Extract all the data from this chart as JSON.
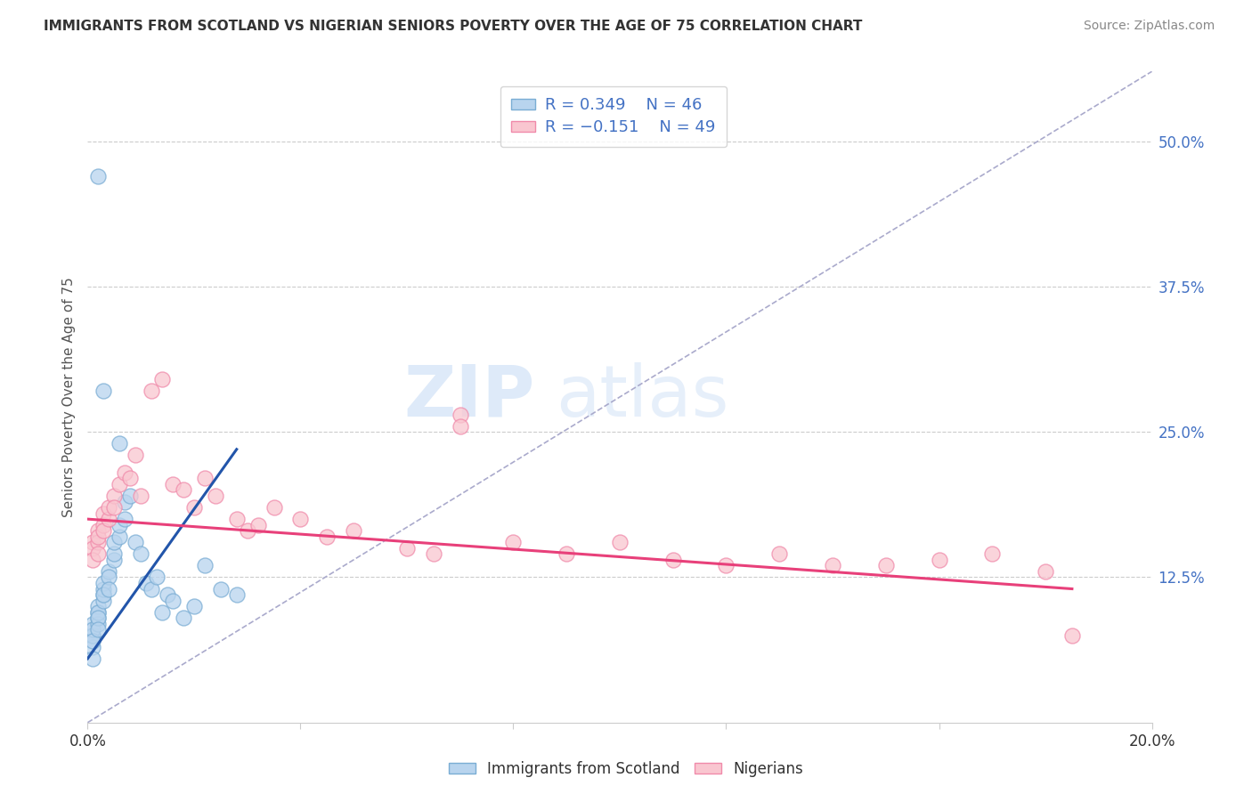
{
  "title": "IMMIGRANTS FROM SCOTLAND VS NIGERIAN SENIORS POVERTY OVER THE AGE OF 75 CORRELATION CHART",
  "source": "Source: ZipAtlas.com",
  "ylabel": "Seniors Poverty Over the Age of 75",
  "xlim": [
    0.0,
    0.2
  ],
  "ylim": [
    0.0,
    0.56
  ],
  "yticks_right": [
    0.125,
    0.25,
    0.375,
    0.5
  ],
  "yticklabels_right": [
    "12.5%",
    "25.0%",
    "37.5%",
    "50.0%"
  ],
  "grid_color": "#cccccc",
  "background_color": "#ffffff",
  "blue_color": "#b8d4ee",
  "blue_edge": "#7aadd4",
  "pink_color": "#f9c6d0",
  "pink_edge": "#f08aaa",
  "blue_line_color": "#2255aa",
  "pink_line_color": "#e8407a",
  "diag_line_color": "#aaaacc",
  "legend_label1": "Immigrants from Scotland",
  "legend_label2": "Nigerians",
  "watermark_zip": "ZIP",
  "watermark_atlas": "atlas",
  "blue_x": [
    0.001,
    0.001,
    0.001,
    0.001,
    0.001,
    0.001,
    0.001,
    0.002,
    0.002,
    0.002,
    0.002,
    0.002,
    0.002,
    0.002,
    0.003,
    0.003,
    0.003,
    0.003,
    0.003,
    0.004,
    0.004,
    0.004,
    0.005,
    0.005,
    0.005,
    0.006,
    0.006,
    0.007,
    0.007,
    0.008,
    0.009,
    0.01,
    0.011,
    0.012,
    0.013,
    0.014,
    0.015,
    0.016,
    0.018,
    0.02,
    0.022,
    0.025,
    0.028,
    0.002,
    0.003,
    0.006
  ],
  "blue_y": [
    0.085,
    0.075,
    0.065,
    0.075,
    0.08,
    0.07,
    0.055,
    0.09,
    0.095,
    0.085,
    0.1,
    0.095,
    0.09,
    0.08,
    0.11,
    0.105,
    0.115,
    0.12,
    0.11,
    0.13,
    0.125,
    0.115,
    0.14,
    0.145,
    0.155,
    0.16,
    0.17,
    0.19,
    0.175,
    0.195,
    0.155,
    0.145,
    0.12,
    0.115,
    0.125,
    0.095,
    0.11,
    0.105,
    0.09,
    0.1,
    0.135,
    0.115,
    0.11,
    0.47,
    0.285,
    0.24
  ],
  "pink_x": [
    0.001,
    0.001,
    0.001,
    0.002,
    0.002,
    0.002,
    0.002,
    0.003,
    0.003,
    0.003,
    0.004,
    0.004,
    0.005,
    0.005,
    0.006,
    0.007,
    0.008,
    0.009,
    0.01,
    0.012,
    0.014,
    0.016,
    0.018,
    0.02,
    0.022,
    0.024,
    0.028,
    0.03,
    0.032,
    0.035,
    0.04,
    0.045,
    0.05,
    0.06,
    0.065,
    0.07,
    0.08,
    0.09,
    0.1,
    0.11,
    0.12,
    0.13,
    0.14,
    0.15,
    0.16,
    0.17,
    0.18,
    0.185,
    0.07
  ],
  "pink_y": [
    0.155,
    0.15,
    0.14,
    0.165,
    0.155,
    0.145,
    0.16,
    0.18,
    0.17,
    0.165,
    0.175,
    0.185,
    0.195,
    0.185,
    0.205,
    0.215,
    0.21,
    0.23,
    0.195,
    0.285,
    0.295,
    0.205,
    0.2,
    0.185,
    0.21,
    0.195,
    0.175,
    0.165,
    0.17,
    0.185,
    0.175,
    0.16,
    0.165,
    0.15,
    0.145,
    0.265,
    0.155,
    0.145,
    0.155,
    0.14,
    0.135,
    0.145,
    0.135,
    0.135,
    0.14,
    0.145,
    0.13,
    0.075,
    0.255
  ],
  "blue_trend_x": [
    0.0,
    0.028
  ],
  "blue_trend_y": [
    0.055,
    0.235
  ],
  "pink_trend_x": [
    0.0,
    0.185
  ],
  "pink_trend_y": [
    0.175,
    0.115
  ]
}
